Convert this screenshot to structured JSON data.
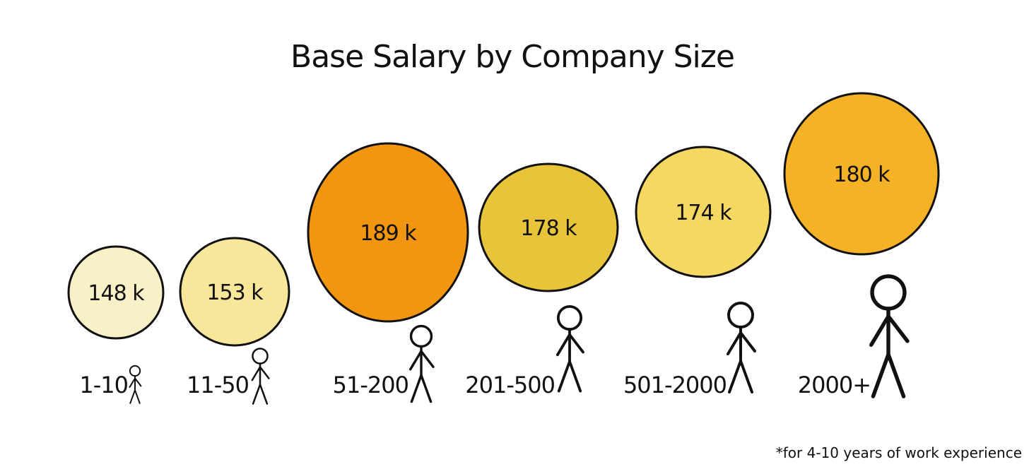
{
  "chart_data": {
    "type": "bubble",
    "title": "Base Salary by Company Size",
    "categories": [
      "1-10",
      "11-50",
      "51-200",
      "201-500",
      "501-2000",
      "2000+"
    ],
    "values": [
      148,
      153,
      189,
      178,
      174,
      180
    ],
    "value_labels": [
      "148 k",
      "153 k",
      "189 k",
      "178 k",
      "174 k",
      "180 k"
    ],
    "colors": [
      "#faf0c8",
      "#f8e79a",
      "#f29510",
      "#e8c43a",
      "#f5d862",
      "#f5b227"
    ],
    "footnote": "*for 4-10 years of work experience"
  }
}
